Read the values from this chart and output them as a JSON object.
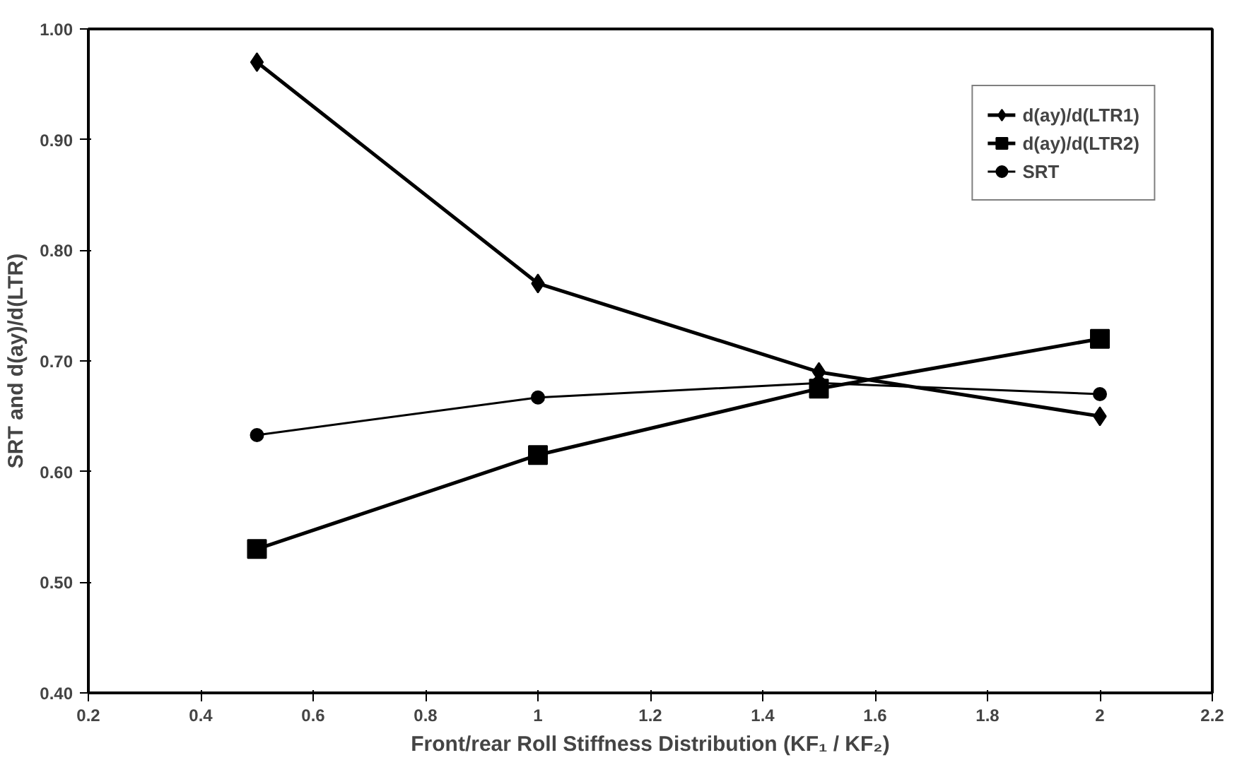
{
  "chart_data": {
    "type": "line",
    "xlabel": "Front/rear Roll Stiffness Distribution (KF₁ / KF₂)",
    "ylabel": "SRT and d(ay)/d(LTR)",
    "x": [
      0.5,
      1,
      1.5,
      2
    ],
    "series": [
      {
        "name": "d(ay)/d(LTR1)",
        "color": "#000000",
        "marker": "diamond",
        "values": [
          0.97,
          0.77,
          0.69,
          0.65
        ]
      },
      {
        "name": "d(ay)/d(LTR2)",
        "color": "#000000",
        "marker": "square",
        "values": [
          0.53,
          0.615,
          0.675,
          0.72
        ]
      },
      {
        "name": "SRT",
        "color": "#000000",
        "marker": "circle",
        "values": [
          0.633,
          0.667,
          0.68,
          0.67
        ]
      }
    ],
    "xlim": [
      0.2,
      2.2
    ],
    "xticks": [
      0.2,
      0.4,
      0.6,
      0.8,
      1,
      1.2,
      1.4,
      1.6,
      1.8,
      2,
      2.2
    ],
    "ylim": [
      0.4,
      1.0
    ],
    "yticks": [
      {
        "value": 0.4,
        "label": "0.40"
      },
      {
        "value": 0.5,
        "label": "0.50"
      },
      {
        "value": 0.6,
        "label": "0.60"
      },
      {
        "value": 0.7,
        "label": "0.70"
      },
      {
        "value": 0.8,
        "label": "0.80"
      },
      {
        "value": 0.9,
        "label": "0.90"
      },
      {
        "value": 1.0,
        "label": "1.00"
      }
    ],
    "grid": false,
    "legend": "top right",
    "line_style": "solid"
  }
}
